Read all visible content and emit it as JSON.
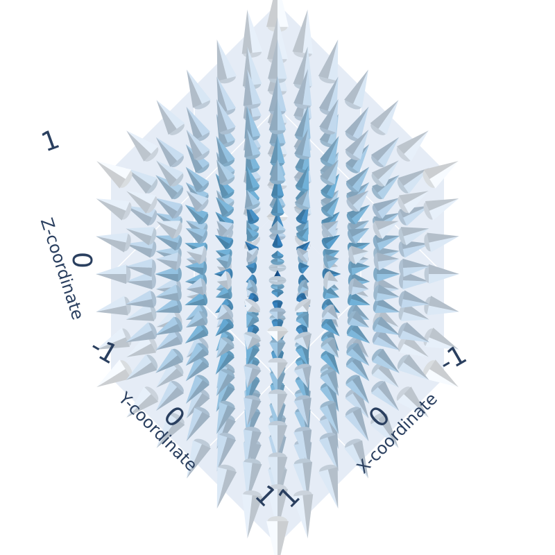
{
  "chart_data": {
    "type": "cone",
    "description_of_field": "radial vector field u=x, v=y, w=z on a 7x7x7 grid",
    "grid": [
      -1.0,
      -0.667,
      -0.333,
      0.0,
      0.333,
      0.667,
      1.0
    ],
    "colorscale": [
      "#08306b",
      "#2171b5",
      "#6baed6",
      "#c6dbef",
      "#f7fbff"
    ],
    "axes": {
      "x": {
        "title": "X-coordinate",
        "range": [
          -1,
          1
        ],
        "ticks": [
          "-1",
          "0",
          "1"
        ]
      },
      "y": {
        "title": "Y-coordinate",
        "range": [
          -1,
          1
        ],
        "ticks": [
          "-1",
          "0",
          "1"
        ]
      },
      "z": {
        "title": "Z-coordinate",
        "range": [
          -1,
          1
        ],
        "ticks": [
          "-1",
          "0",
          "1"
        ]
      }
    },
    "scene": {
      "pane_color": "#e5ecf6",
      "grid_color": "#ffffff"
    }
  }
}
